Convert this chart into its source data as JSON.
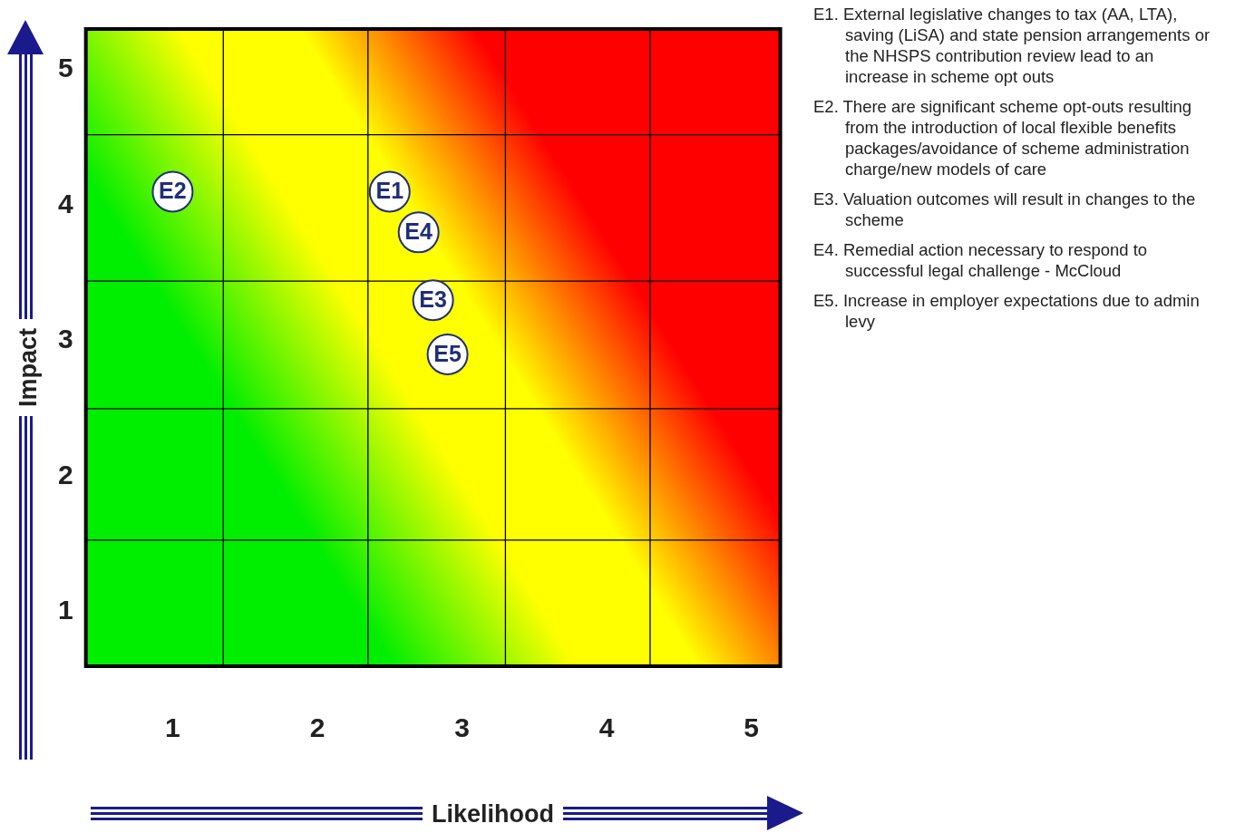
{
  "chart_data": {
    "type": "scatter",
    "xlabel": "Likelihood",
    "ylabel": "Impact",
    "x": [
      2.5,
      1.0,
      2.8,
      2.7,
      2.9
    ],
    "series": [
      {
        "color": "#ffffff",
        "values": [
          4.1,
          4.1,
          3.3,
          3.8,
          2.9
        ]
      }
    ],
    "marker": "circle",
    "xlim": [
      0.4,
      5.2
    ],
    "ylim": [
      0.6,
      5.3
    ],
    "xticks": [
      1,
      2,
      3,
      4,
      5
    ],
    "yticks": [
      1,
      2,
      3,
      4,
      5
    ],
    "ref_lines": [
      {
        "axis": "x",
        "value": 1.35,
        "color": "#000000"
      },
      {
        "axis": "x",
        "value": 2.35,
        "color": "#000000"
      },
      {
        "axis": "x",
        "value": 3.3,
        "color": "#000000"
      },
      {
        "axis": "x",
        "value": 4.3,
        "color": "#000000"
      },
      {
        "axis": "y",
        "value": 1.53,
        "color": "#000000"
      },
      {
        "axis": "y",
        "value": 2.5,
        "color": "#000000"
      },
      {
        "axis": "y",
        "value": 3.44,
        "color": "#000000"
      },
      {
        "axis": "y",
        "value": 4.52,
        "color": "#000000"
      }
    ],
    "annotations": [
      {
        "text": "E1",
        "x": 2.5,
        "y": 4.1
      },
      {
        "text": "E2",
        "x": 1.0,
        "y": 4.1
      },
      {
        "text": "E3",
        "x": 2.8,
        "y": 3.3
      },
      {
        "text": "E4",
        "x": 2.7,
        "y": 3.8
      },
      {
        "text": "E5",
        "x": 2.9,
        "y": 2.9
      },
      "E1. External legislative changes to tax (AA, LTA), saving (LiSA) and state pension arrangements or the NHSPS contribution review lead to an increase in scheme opt outs",
      "E2. There are significant scheme opt-outs resulting from the introduction of local flexible benefits packages/avoidance of scheme administration charge/new models of care",
      "E3. Valuation outcomes will result in changes to the scheme",
      "E4. Remedial action necessary to respond to successful legal challenge - McCloud",
      "E5. Increase in employer expectations due to admin levy"
    ]
  }
}
